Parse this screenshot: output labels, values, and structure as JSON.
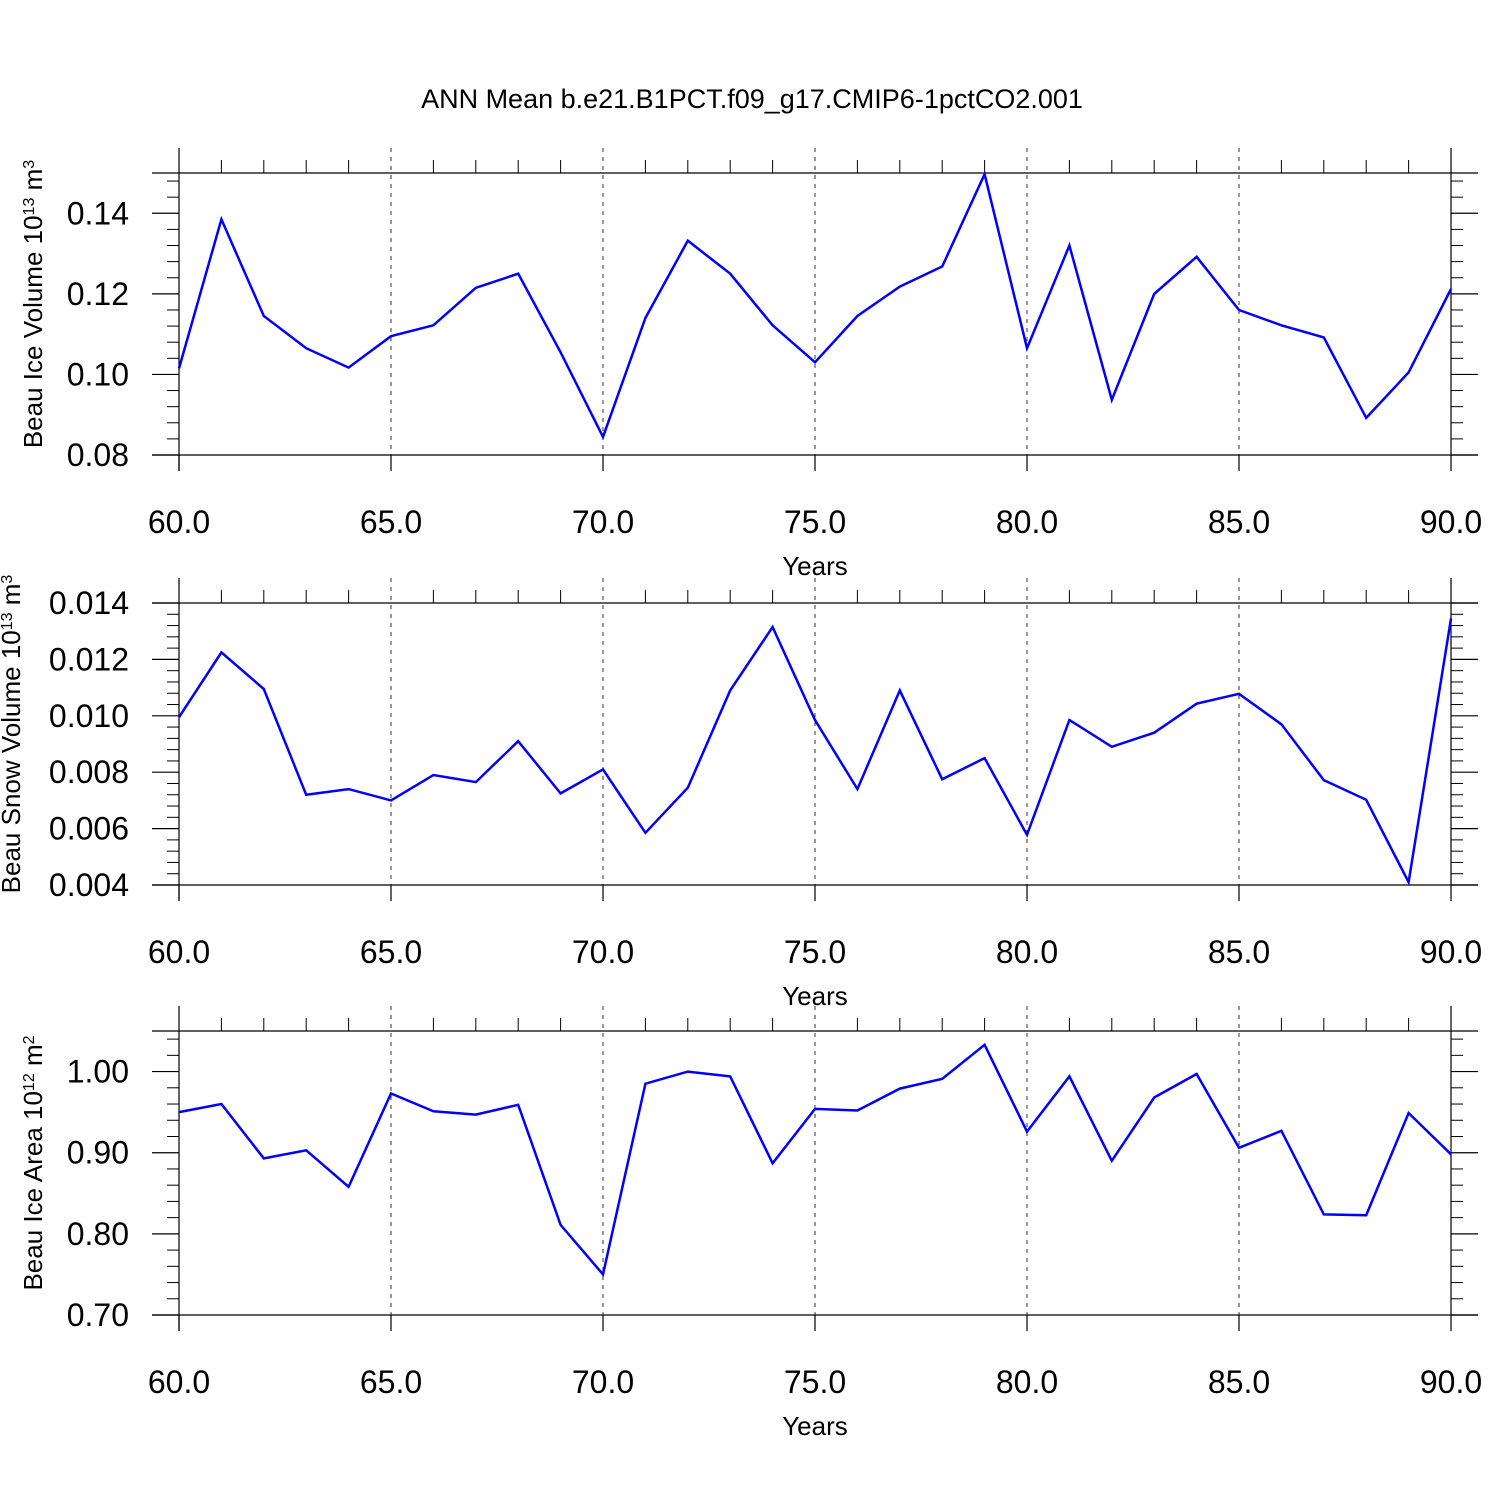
{
  "title": "ANN Mean b.e21.B1PCT.f09_g17.CMIP6-1pctCO2.001",
  "line_color": "#0000ff",
  "chart_data": [
    {
      "type": "line",
      "xlabel": "Years",
      "ylabel": {
        "base": "Beau Ice Volume 10",
        "exp1": "13",
        "mid": " m",
        "exp2": "3"
      },
      "xlim": [
        60,
        90
      ],
      "ylim": [
        0.08,
        0.15
      ],
      "xticks": [
        "60.0",
        "65.0",
        "70.0",
        "75.0",
        "80.0",
        "85.0",
        "90.0"
      ],
      "yticks": [
        "0.08",
        "0.10",
        "0.12",
        "0.14"
      ],
      "ytick_values": [
        0.08,
        0.1,
        0.12,
        0.14
      ],
      "x": [
        60,
        61,
        62,
        63,
        64,
        65,
        66,
        67,
        68,
        69,
        70,
        71,
        72,
        73,
        74,
        75,
        76,
        77,
        78,
        79,
        80,
        81,
        82,
        83,
        84,
        85,
        86,
        87,
        88,
        89,
        90
      ],
      "y": [
        0.1015,
        0.1385,
        0.1145,
        0.1065,
        0.1017,
        0.1095,
        0.1122,
        0.1215,
        0.125,
        0.1055,
        0.0845,
        0.114,
        0.1332,
        0.125,
        0.1122,
        0.103,
        0.1145,
        0.1218,
        0.1268,
        0.1497,
        0.1065,
        0.132,
        0.0937,
        0.12,
        0.1292,
        0.116,
        0.1122,
        0.1092,
        0.0892,
        0.1005,
        0.1212
      ]
    },
    {
      "type": "line",
      "xlabel": "Years",
      "ylabel": {
        "base": "Beau Snow Volume 10",
        "exp1": "13",
        "mid": " m",
        "exp2": "3"
      },
      "xlim": [
        60,
        90
      ],
      "ylim": [
        0.004,
        0.014
      ],
      "xticks": [
        "60.0",
        "65.0",
        "70.0",
        "75.0",
        "80.0",
        "85.0",
        "90.0"
      ],
      "yticks": [
        "0.004",
        "0.006",
        "0.008",
        "0.010",
        "0.012",
        "0.014"
      ],
      "ytick_values": [
        0.004,
        0.006,
        0.008,
        0.01,
        0.012,
        0.014
      ],
      "x": [
        60,
        61,
        62,
        63,
        64,
        65,
        66,
        67,
        68,
        69,
        70,
        71,
        72,
        73,
        74,
        75,
        76,
        77,
        78,
        79,
        80,
        81,
        82,
        83,
        84,
        85,
        86,
        87,
        88,
        89,
        90
      ],
      "y": [
        0.00995,
        0.01225,
        0.01095,
        0.0072,
        0.0074,
        0.007,
        0.0079,
        0.00765,
        0.0091,
        0.00725,
        0.0081,
        0.00585,
        0.00745,
        0.0109,
        0.01315,
        0.00985,
        0.0074,
        0.0109,
        0.00775,
        0.0085,
        0.00578,
        0.00985,
        0.0089,
        0.0094,
        0.01043,
        0.01078,
        0.0097,
        0.00772,
        0.00702,
        0.0041,
        0.01345
      ]
    },
    {
      "type": "line",
      "xlabel": "Years",
      "ylabel": {
        "base": "Beau Ice Area 10",
        "exp1": "12",
        "mid": " m",
        "exp2": "2"
      },
      "xlim": [
        60,
        90
      ],
      "ylim": [
        0.7,
        1.05
      ],
      "xticks": [
        "60.0",
        "65.0",
        "70.0",
        "75.0",
        "80.0",
        "85.0",
        "90.0"
      ],
      "yticks": [
        "0.70",
        "0.80",
        "0.90",
        "1.00"
      ],
      "ytick_values": [
        0.7,
        0.8,
        0.9,
        1.0
      ],
      "x": [
        60,
        61,
        62,
        63,
        64,
        65,
        66,
        67,
        68,
        69,
        70,
        71,
        72,
        73,
        74,
        75,
        76,
        77,
        78,
        79,
        80,
        81,
        82,
        83,
        84,
        85,
        86,
        87,
        88,
        89,
        90
      ],
      "y": [
        0.95,
        0.96,
        0.893,
        0.903,
        0.858,
        0.973,
        0.951,
        0.947,
        0.959,
        0.811,
        0.75,
        0.985,
        1.0,
        0.994,
        0.887,
        0.954,
        0.952,
        0.979,
        0.991,
        1.033,
        0.926,
        0.994,
        0.89,
        0.968,
        0.997,
        0.906,
        0.927,
        0.824,
        0.823,
        0.949,
        0.898
      ]
    }
  ]
}
